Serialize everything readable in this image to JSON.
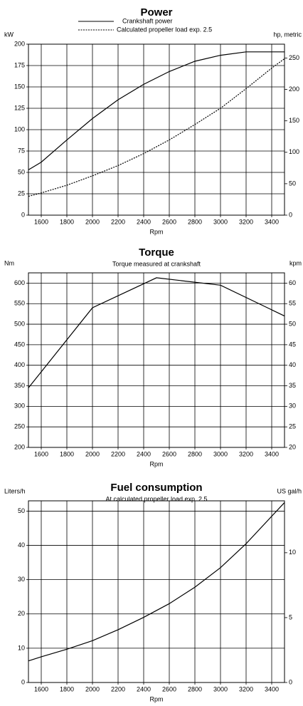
{
  "chart_data": [
    {
      "type": "line",
      "title": "Power",
      "x_label": "Rpm",
      "y_label": "kW",
      "y2_label": "hp, metric",
      "x": [
        1500,
        1600,
        1800,
        2000,
        2200,
        2400,
        2600,
        2800,
        3000,
        3200,
        3400,
        3500
      ],
      "series": [
        {
          "name": "Crankshaft power",
          "color": "#000000",
          "style": "solid",
          "values": [
            53,
            62,
            88,
            113,
            135,
            153,
            168,
            180,
            187,
            191,
            191,
            191
          ]
        },
        {
          "name": "Calculated propeller load exp. 2.5",
          "color": "#000000",
          "style": "dotted",
          "values": [
            22,
            26,
            35,
            46,
            58,
            72,
            88,
            106,
            125,
            148,
            172,
            183
          ]
        }
      ],
      "xlim": [
        1500,
        3500
      ],
      "xticks": [
        1600,
        1800,
        2000,
        2200,
        2400,
        2600,
        2800,
        3000,
        3200,
        3400
      ],
      "ylim": [
        0,
        200
      ],
      "yticks": [
        0,
        25,
        50,
        75,
        100,
        125,
        150,
        175,
        200
      ],
      "y2lim": [
        0,
        272
      ],
      "y2ticks": [
        0,
        50,
        100,
        150,
        200,
        250
      ],
      "grid": true
    },
    {
      "type": "line",
      "title": "Torque",
      "subtitle": "Torque measured at crankshaft",
      "x_label": "Rpm",
      "y_label": "Nm",
      "y2_label": "kpm",
      "x": [
        1500,
        2000,
        2500,
        3000,
        3500
      ],
      "series": [
        {
          "name": "Torque",
          "color": "#000000",
          "style": "solid",
          "values": [
            345,
            540,
            613,
            595,
            520
          ]
        }
      ],
      "xlim": [
        1500,
        3500
      ],
      "xticks": [
        1600,
        1800,
        2000,
        2200,
        2400,
        2600,
        2800,
        3000,
        3200,
        3400
      ],
      "ylim": [
        200,
        625
      ],
      "yticks": [
        200,
        250,
        300,
        350,
        400,
        450,
        500,
        550,
        600
      ],
      "y2lim": [
        20,
        62.5
      ],
      "y2ticks": [
        20,
        25,
        30,
        35,
        40,
        45,
        50,
        55,
        60
      ],
      "grid": true
    },
    {
      "type": "line",
      "title": "Fuel consumption",
      "subtitle": "At calculated propeller load exp. 2.5",
      "x_label": "Rpm",
      "y_label": "Liters/h",
      "y2_label": "US gal/h",
      "x": [
        1500,
        1600,
        1800,
        2000,
        2200,
        2400,
        2600,
        2800,
        3000,
        3200,
        3400,
        3500
      ],
      "series": [
        {
          "name": "Fuel consumption",
          "color": "#000000",
          "style": "solid",
          "values": [
            6.3,
            7.5,
            9.7,
            12.2,
            15.4,
            19,
            23,
            27.8,
            33.5,
            40.5,
            48.5,
            52.5
          ]
        }
      ],
      "xlim": [
        1500,
        3500
      ],
      "xticks": [
        1600,
        1800,
        2000,
        2200,
        2400,
        2600,
        2800,
        3000,
        3200,
        3400
      ],
      "ylim": [
        0,
        53
      ],
      "yticks": [
        0,
        10,
        20,
        30,
        40,
        50
      ],
      "y2lim": [
        0,
        14
      ],
      "y2ticks": [
        0,
        5,
        10
      ],
      "grid": true
    }
  ]
}
